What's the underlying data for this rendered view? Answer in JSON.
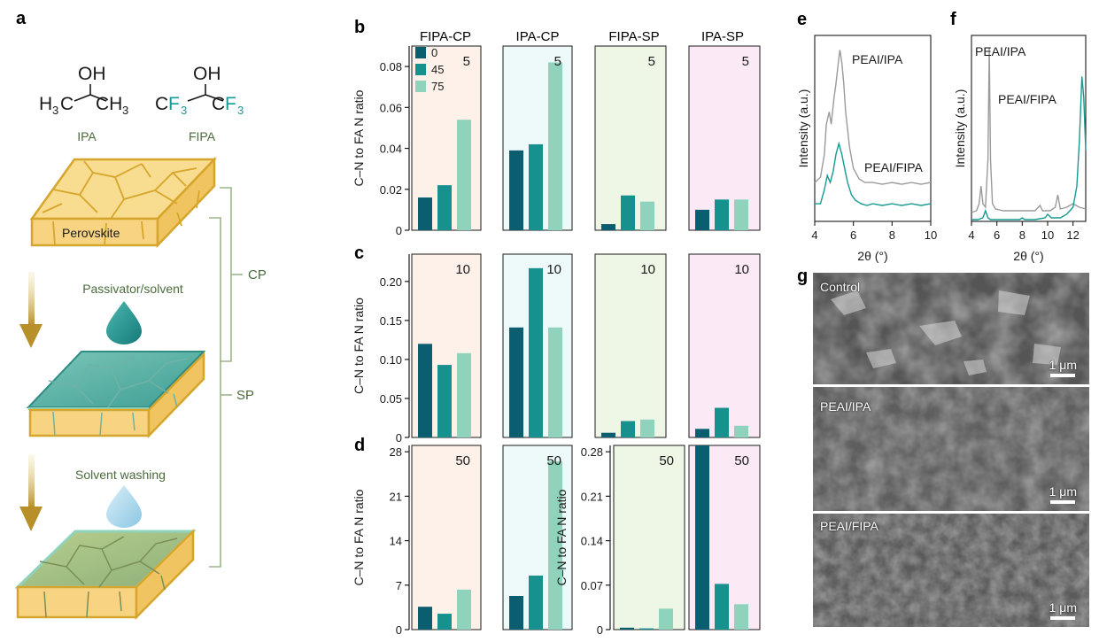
{
  "panels": {
    "a": "a",
    "b": "b",
    "c": "c",
    "d": "d",
    "e": "e",
    "f": "f",
    "g": "g"
  },
  "schematic": {
    "ipa_formula": {
      "left": "H",
      "left_sub": "3",
      "left_c": "C",
      "oh": "OH",
      "right": "CH",
      "right_sub": "3"
    },
    "fipa_formula": {
      "c1": "C",
      "f1": "F",
      "f1_sub": "3",
      "oh": "OH",
      "c2": "C",
      "f2": "F",
      "f2_sub": "3"
    },
    "ipa_label": "IPA",
    "fipa_label": "FIPA",
    "perovskite_label": "Perovskite",
    "passivator_label": "Passivator/solvent",
    "washing_label": "Solvent washing",
    "cp_label": "CP",
    "sp_label": "SP",
    "colors": {
      "perovskite": "#f7d98a",
      "perovskite_edge": "#d6a62c",
      "film": "#5fb3a8",
      "film_dark": "#2f8d86",
      "drop_teal": "#1d8e8c",
      "drop_light": "#a8d7ec",
      "bracket": "#9ab58a",
      "label_green": "#4a6b3a",
      "arrow": "#c9a332"
    }
  },
  "chart_data": [
    {
      "type": "bar",
      "panel": "b",
      "groups": [
        "FIPA-CP",
        "IPA-CP",
        "FIPA-SP",
        "IPA-SP"
      ],
      "group_bg": [
        "#fdf1ea",
        "#eefaf9",
        "#eef6e6",
        "#fbeaf6"
      ],
      "series": [
        {
          "name": "0",
          "color": "#0b5e70",
          "values": [
            0.016,
            0.039,
            0.003,
            0.01
          ]
        },
        {
          "name": "45",
          "color": "#16918d",
          "values": [
            0.022,
            0.042,
            0.017,
            0.015
          ]
        },
        {
          "name": "75",
          "color": "#8fd3bd",
          "values": [
            0.054,
            0.082,
            0.014,
            0.015
          ]
        }
      ],
      "annotation": "5",
      "ylabel": "C–N to FA N ratio",
      "ylim": [
        0,
        0.09
      ],
      "yticks": [
        "0",
        "0.02",
        "0.04",
        "0.06",
        "0.08"
      ],
      "ytick_values": [
        0,
        0.02,
        0.04,
        0.06,
        0.08
      ],
      "legend_position": "top-left"
    },
    {
      "type": "bar",
      "panel": "c",
      "groups": [
        "FIPA-CP",
        "IPA-CP",
        "FIPA-SP",
        "IPA-SP"
      ],
      "series": [
        {
          "name": "0",
          "values": [
            0.12,
            0.141,
            0.006,
            0.011
          ]
        },
        {
          "name": "45",
          "values": [
            0.093,
            0.217,
            0.021,
            0.038
          ]
        },
        {
          "name": "75",
          "values": [
            0.108,
            0.141,
            0.023,
            0.015
          ]
        }
      ],
      "annotation": "10",
      "ylabel": "C–N to FA N ratio",
      "ylim": [
        0,
        0.235
      ],
      "yticks": [
        "0",
        "0.05",
        "0.10",
        "0.15",
        "0.20"
      ],
      "ytick_values": [
        0,
        0.05,
        0.1,
        0.15,
        0.2
      ]
    },
    {
      "type": "bar",
      "panel": "d-left",
      "groups": [
        "FIPA-CP",
        "IPA-CP"
      ],
      "series": [
        {
          "name": "0",
          "values": [
            3.6,
            5.3
          ]
        },
        {
          "name": "45",
          "values": [
            2.5,
            8.5
          ]
        },
        {
          "name": "75",
          "values": [
            6.3,
            26.5
          ]
        }
      ],
      "annotation": "50",
      "ylabel": "C–N to FA N ratio",
      "ylim": [
        0,
        29
      ],
      "yticks": [
        "0",
        "7",
        "14",
        "21",
        "28"
      ],
      "ytick_values": [
        0,
        7,
        14,
        21,
        28
      ]
    },
    {
      "type": "bar",
      "panel": "d-right",
      "groups": [
        "FIPA-SP",
        "IPA-SP"
      ],
      "series": [
        {
          "name": "0",
          "values": [
            0.003,
            0.29
          ]
        },
        {
          "name": "45",
          "values": [
            0.002,
            0.072
          ]
        },
        {
          "name": "75",
          "values": [
            0.033,
            0.04
          ]
        }
      ],
      "annotation": "50",
      "ylabel": "C–N to FA N ratio",
      "ylim": [
        0,
        0.29
      ],
      "yticks": [
        "0",
        "0.07",
        "0.14",
        "0.21",
        "0.28"
      ],
      "ytick_values": [
        0,
        0.07,
        0.14,
        0.21,
        0.28
      ]
    },
    {
      "type": "line",
      "panel": "e",
      "xlabel": "2θ (°)",
      "ylabel": "Intensity (a.u.)",
      "xlim": [
        4,
        10
      ],
      "xticks": [
        "4",
        "6",
        "8",
        "10"
      ],
      "xtick_values": [
        4,
        6,
        8,
        10
      ],
      "series": [
        {
          "name": "PEAI/IPA",
          "color": "#9a9a9a",
          "x": [
            4.0,
            4.3,
            4.5,
            4.6,
            4.75,
            4.85,
            5.0,
            5.1,
            5.2,
            5.3,
            5.4,
            5.5,
            5.6,
            5.8,
            6.0,
            6.3,
            6.6,
            7.0,
            7.5,
            8.0,
            8.5,
            9.0,
            9.5,
            10.0
          ],
          "y": [
            0.22,
            0.25,
            0.38,
            0.55,
            0.62,
            0.55,
            0.7,
            0.78,
            0.88,
            0.97,
            0.9,
            0.78,
            0.62,
            0.42,
            0.3,
            0.24,
            0.22,
            0.22,
            0.21,
            0.22,
            0.21,
            0.22,
            0.21,
            0.22
          ]
        },
        {
          "name": "PEAI/FIPA",
          "color": "#169a94",
          "x": [
            4.0,
            4.3,
            4.5,
            4.65,
            4.8,
            4.95,
            5.1,
            5.25,
            5.4,
            5.55,
            5.7,
            5.9,
            6.1,
            6.4,
            6.7,
            7.0,
            7.5,
            8.0,
            8.5,
            9.0,
            9.5,
            10.0
          ],
          "y": [
            0.1,
            0.1,
            0.18,
            0.26,
            0.22,
            0.28,
            0.38,
            0.44,
            0.38,
            0.3,
            0.22,
            0.15,
            0.12,
            0.1,
            0.09,
            0.1,
            0.09,
            0.1,
            0.09,
            0.1,
            0.09,
            0.1
          ]
        }
      ]
    },
    {
      "type": "line",
      "panel": "f",
      "xlabel": "2θ (°)",
      "ylabel": "Intensity (a.u.)",
      "xlim": [
        4,
        13
      ],
      "xticks": [
        "4",
        "6",
        "8",
        "10",
        "12"
      ],
      "xtick_values": [
        4,
        6,
        8,
        10,
        12
      ],
      "series": [
        {
          "name": "PEAI/IPA",
          "color": "#9a9a9a",
          "x": [
            4.0,
            4.4,
            4.6,
            4.75,
            4.9,
            5.1,
            5.3,
            5.4,
            5.5,
            5.65,
            5.9,
            6.5,
            7.5,
            8.3,
            9.0,
            9.4,
            9.6,
            10.2,
            10.6,
            10.8,
            11.0,
            11.5,
            12.0,
            12.5,
            13.0
          ],
          "y": [
            0.05,
            0.06,
            0.1,
            0.2,
            0.1,
            0.08,
            0.35,
            0.98,
            0.35,
            0.1,
            0.07,
            0.06,
            0.06,
            0.06,
            0.06,
            0.09,
            0.06,
            0.06,
            0.08,
            0.15,
            0.07,
            0.08,
            0.1,
            0.08,
            0.07
          ]
        },
        {
          "name": "PEAI/FIPA",
          "color": "#169a94",
          "x": [
            4.0,
            4.5,
            4.9,
            5.1,
            5.3,
            5.5,
            6.0,
            7.0,
            7.8,
            8.0,
            8.2,
            9.0,
            9.8,
            10.0,
            10.3,
            11.0,
            11.5,
            12.0,
            12.3,
            12.5,
            12.7,
            12.85,
            13.0
          ],
          "y": [
            0.01,
            0.01,
            0.02,
            0.06,
            0.02,
            0.01,
            0.01,
            0.01,
            0.01,
            0.02,
            0.01,
            0.01,
            0.02,
            0.04,
            0.02,
            0.02,
            0.04,
            0.08,
            0.2,
            0.45,
            0.82,
            0.7,
            0.4
          ]
        }
      ]
    }
  ],
  "sem": [
    {
      "label": "Control",
      "scale": "1 μm"
    },
    {
      "label": "PEAI/IPA",
      "scale": "1 μm"
    },
    {
      "label": "PEAI/FIPA",
      "scale": "1 μm"
    }
  ]
}
